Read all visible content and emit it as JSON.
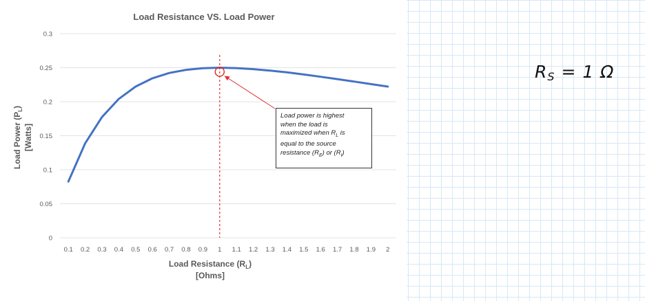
{
  "chart_data": {
    "type": "line",
    "title": "Load Resistance VS. Load Power",
    "xlabel_line1": "Load Resistance (R",
    "xlabel_sub": "L",
    "xlabel_line2": "[Ohms]",
    "ylabel_line1": "Load Power (P",
    "ylabel_sub": "L",
    "ylabel_line2": "[Watts]",
    "x": [
      0.1,
      0.2,
      0.3,
      0.4,
      0.5,
      0.6,
      0.7,
      0.8,
      0.9,
      1,
      1.1,
      1.2,
      1.3,
      1.4,
      1.5,
      1.6,
      1.7,
      1.8,
      1.9,
      2
    ],
    "x_tick_labels": [
      "0.1",
      "0.2",
      "0.3",
      "0.4",
      "0.5",
      "0.6",
      "0.7",
      "0.8",
      "0.9",
      "1",
      "1.1",
      "1.2",
      "1.3",
      "1.4",
      "1.5",
      "1.6",
      "1.7",
      "1.8",
      "1.9",
      "2"
    ],
    "series": [
      {
        "values": [
          0.0826,
          0.1389,
          0.1775,
          0.2041,
          0.2222,
          0.2344,
          0.2422,
          0.2469,
          0.2493,
          0.25,
          0.2494,
          0.2479,
          0.2457,
          0.2431,
          0.24,
          0.2367,
          0.2332,
          0.2296,
          0.2259,
          0.2222
        ],
        "color": "#4472c4"
      }
    ],
    "ylim": [
      0,
      0.3
    ],
    "y_ticks": [
      0,
      0.05,
      0.1,
      0.15,
      0.2,
      0.25,
      0.3
    ],
    "y_tick_labels": [
      "0",
      "0.05",
      "0.1",
      "0.15",
      "0.2",
      "0.25",
      "0.3"
    ],
    "grid": true,
    "marker_line_x": 1,
    "highlight_point": {
      "x": 1,
      "y": 0.25
    },
    "annotation": {
      "lines": [
        "Load power is highest",
        "when the load is",
        "maximized when R|L| is",
        "equal to the source",
        "resistance (R|E|) or (R|I|)"
      ]
    },
    "colors": {
      "line": "#4472c4",
      "marker": "#e0302f",
      "grid": "#e3e3e3",
      "text": "#595959"
    }
  },
  "side_label": {
    "main": "R",
    "sub": "S",
    "rest": " = 1 Ω"
  }
}
